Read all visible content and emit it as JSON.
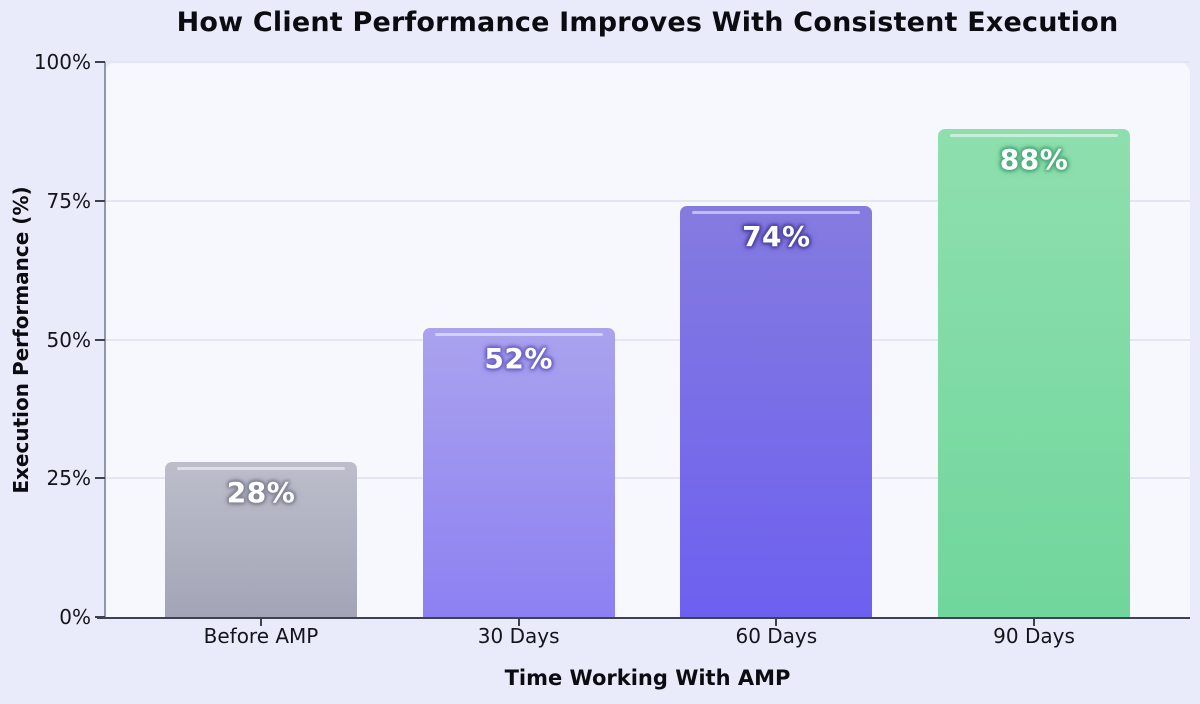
{
  "chart_data": {
    "type": "bar",
    "title": "How Client Performance Improves With Consistent Execution",
    "xlabel": "Time Working With AMP",
    "ylabel": "Execution Performance (%)",
    "categories": [
      "Before AMP",
      "30 Days",
      "60 Days",
      "90 Days"
    ],
    "values": [
      28,
      52,
      74,
      88
    ],
    "value_labels": [
      "28%",
      "52%",
      "74%",
      "88%"
    ],
    "ylim": [
      0,
      100
    ],
    "yticks": [
      "0%",
      "25%",
      "50%",
      "75%",
      "100%"
    ],
    "grid": true,
    "legend": "none",
    "style": {
      "figure_background": "#e9ebfa",
      "plot_background": "#f7f8fd",
      "gridline_color": "#e3e6f2",
      "left_spine_color": "#9296aa",
      "bottom_spine_color": "#3d4250",
      "text_color": "#0b0c12",
      "value_label_color": "#ffffff"
    },
    "bar_colors": [
      {
        "top": "#bdbecb",
        "bottom": "#a3a5b7",
        "glow": "#84879a"
      },
      {
        "top": "#aaa3ee",
        "bottom": "#8d80f2",
        "glow": "#6f66c8"
      },
      {
        "top": "#857bdf",
        "bottom": "#6d60f0",
        "glow": "#4f46a8"
      },
      {
        "top": "#8fdfae",
        "bottom": "#70d69c",
        "glow": "#4fae7d"
      }
    ]
  }
}
